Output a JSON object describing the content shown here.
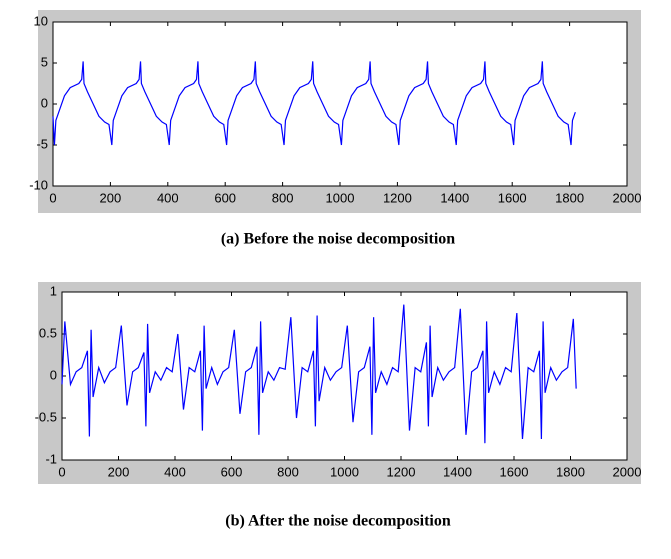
{
  "chart_data": [
    {
      "type": "line",
      "caption": "(a) Before the noise decomposition",
      "color": "#0000ff",
      "xlim": [
        0,
        2000
      ],
      "xticks": [
        0,
        200,
        400,
        600,
        800,
        1000,
        1200,
        1400,
        1600,
        1800,
        2000
      ],
      "ylim": [
        -10,
        10
      ],
      "yticks": [
        -10,
        -5,
        0,
        5,
        10
      ],
      "x": [
        0,
        5,
        10,
        20,
        40,
        60,
        90,
        100,
        105,
        108,
        120,
        140,
        160,
        180,
        195,
        205,
        210,
        220,
        240,
        260,
        290,
        300,
        305,
        308,
        320,
        340,
        360,
        380,
        395,
        405,
        410,
        420,
        440,
        460,
        490,
        500,
        505,
        508,
        520,
        540,
        560,
        580,
        595,
        605,
        610,
        620,
        640,
        660,
        690,
        700,
        705,
        708,
        720,
        740,
        760,
        780,
        795,
        805,
        810,
        820,
        840,
        860,
        890,
        900,
        905,
        908,
        920,
        940,
        960,
        980,
        995,
        1005,
        1010,
        1020,
        1040,
        1060,
        1090,
        1100,
        1105,
        1108,
        1120,
        1140,
        1160,
        1180,
        1195,
        1205,
        1210,
        1220,
        1240,
        1260,
        1290,
        1300,
        1305,
        1308,
        1320,
        1340,
        1360,
        1380,
        1395,
        1405,
        1410,
        1420,
        1440,
        1460,
        1490,
        1500,
        1505,
        1508,
        1520,
        1540,
        1560,
        1580,
        1595,
        1605,
        1610,
        1620,
        1640,
        1660,
        1690,
        1700,
        1705,
        1708,
        1720,
        1740,
        1760,
        1780,
        1795,
        1805,
        1810,
        1820
      ],
      "values": [
        -1.5,
        -5,
        -2,
        -1,
        1,
        2,
        2.5,
        3,
        5.2,
        2.5,
        1.5,
        0,
        -1.5,
        -2.2,
        -2.5,
        -5,
        -2,
        -1,
        1,
        2,
        2.5,
        3,
        5.2,
        2.5,
        1.5,
        0,
        -1.5,
        -2.2,
        -2.5,
        -5,
        -2,
        -1,
        1,
        2,
        2.5,
        3,
        5.2,
        2.5,
        1.5,
        0,
        -1.5,
        -2.2,
        -2.5,
        -5,
        -2,
        -1,
        1,
        2,
        2.5,
        3,
        5.2,
        2.5,
        1.5,
        0,
        -1.5,
        -2.2,
        -2.5,
        -5,
        -2,
        -1,
        1,
        2,
        2.5,
        3,
        5.2,
        2.5,
        1.5,
        0,
        -1.5,
        -2.2,
        -2.5,
        -5,
        -2,
        -1,
        1,
        2,
        2.5,
        3,
        5.2,
        2.5,
        1.5,
        0,
        -1.5,
        -2.2,
        -2.5,
        -5,
        -2,
        -1,
        1,
        2,
        2.5,
        3,
        5.2,
        2.5,
        1.5,
        0,
        -1.5,
        -2.2,
        -2.5,
        -5,
        -2,
        -1,
        1,
        2,
        2.5,
        3,
        5.2,
        2.5,
        1.5,
        0,
        -1.5,
        -2.2,
        -2.5,
        -5,
        -2,
        -1,
        1,
        2,
        2.5,
        3,
        5.2,
        2.5,
        1.5,
        0,
        -1.5,
        -2.2,
        -2.5,
        -5,
        -2,
        -1
      ]
    },
    {
      "type": "line",
      "caption": "(b) After the noise decomposition",
      "color": "#0000ff",
      "xlim": [
        0,
        2000
      ],
      "xticks": [
        0,
        200,
        400,
        600,
        800,
        1000,
        1200,
        1400,
        1600,
        1800,
        2000
      ],
      "ylim": [
        -1,
        1
      ],
      "yticks": [
        -1,
        -0.5,
        0,
        0.5,
        1
      ],
      "x": [
        0,
        10,
        30,
        50,
        70,
        90,
        97,
        103,
        110,
        130,
        150,
        170,
        190,
        210,
        230,
        250,
        270,
        290,
        297,
        303,
        310,
        330,
        350,
        370,
        390,
        410,
        430,
        450,
        470,
        490,
        497,
        503,
        510,
        530,
        550,
        570,
        590,
        610,
        630,
        650,
        670,
        690,
        697,
        703,
        710,
        730,
        750,
        770,
        790,
        810,
        830,
        850,
        870,
        890,
        897,
        903,
        910,
        930,
        950,
        970,
        990,
        1010,
        1030,
        1050,
        1070,
        1090,
        1097,
        1103,
        1110,
        1130,
        1150,
        1170,
        1190,
        1210,
        1230,
        1250,
        1270,
        1290,
        1297,
        1303,
        1310,
        1330,
        1350,
        1370,
        1390,
        1410,
        1430,
        1450,
        1470,
        1490,
        1497,
        1503,
        1510,
        1530,
        1550,
        1570,
        1590,
        1610,
        1630,
        1650,
        1670,
        1690,
        1697,
        1703,
        1710,
        1730,
        1750,
        1770,
        1790,
        1810,
        1820
      ],
      "values": [
        -0.1,
        0.65,
        -0.1,
        0.05,
        0.1,
        0.3,
        -0.72,
        0.55,
        -0.25,
        0.1,
        -0.08,
        0.05,
        0.1,
        0.6,
        -0.35,
        0.05,
        0.1,
        0.28,
        -0.6,
        0.62,
        -0.2,
        0.05,
        -0.05,
        0.1,
        0.05,
        0.5,
        -0.4,
        0.1,
        0.05,
        0.3,
        -0.65,
        0.6,
        -0.15,
        0.1,
        -0.1,
        0.05,
        0.1,
        0.55,
        -0.45,
        0.05,
        0.1,
        0.35,
        -0.7,
        0.65,
        -0.2,
        0.05,
        -0.05,
        0.1,
        0.08,
        0.7,
        -0.5,
        0.1,
        0.05,
        0.3,
        -0.6,
        0.72,
        -0.3,
        0.1,
        -0.05,
        0.05,
        0.1,
        0.6,
        -0.55,
        0.05,
        0.1,
        0.35,
        -0.7,
        0.7,
        -0.2,
        0.05,
        -0.1,
        0.1,
        0.05,
        0.85,
        -0.65,
        0.1,
        0.05,
        0.4,
        -0.6,
        0.6,
        -0.25,
        0.1,
        -0.05,
        0.05,
        0.1,
        0.8,
        -0.7,
        0.05,
        0.1,
        0.3,
        -0.8,
        0.65,
        -0.2,
        0.05,
        -0.1,
        0.1,
        0.05,
        0.75,
        -0.75,
        0.1,
        0.05,
        0.3,
        -0.75,
        0.65,
        -0.2,
        0.1,
        -0.05,
        0.05,
        0.1,
        0.68,
        -0.15
      ]
    }
  ]
}
